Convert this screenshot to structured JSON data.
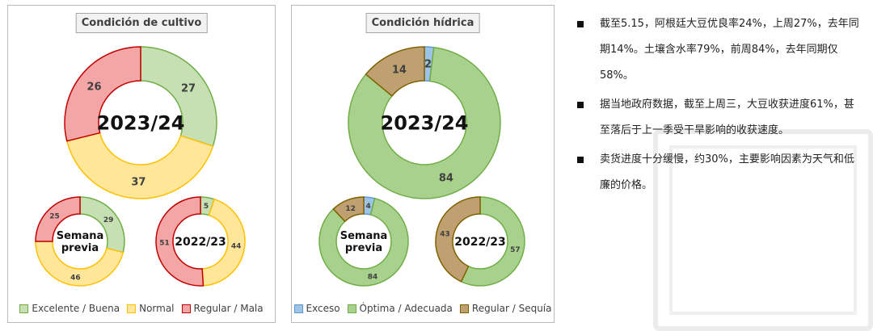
{
  "panels": [
    {
      "title": "Condición de cultivo",
      "legend": [
        {
          "label": "Excelente / Buena",
          "fill": "#c6e0b4",
          "stroke": "#70ad47"
        },
        {
          "label": "Normal",
          "fill": "#ffe699",
          "stroke": "#ffc000"
        },
        {
          "label": "Regular / Mala",
          "fill": "#f4a6a6",
          "stroke": "#c00000"
        }
      ]
    },
    {
      "title": "Condición hídrica",
      "legend": [
        {
          "label": "Exceso",
          "fill": "#9dc3e6",
          "stroke": "#5b9bd5"
        },
        {
          "label": "Óptima / Adecuada",
          "fill": "#a9d18e",
          "stroke": "#70ad47"
        },
        {
          "label": "Regular / Sequía",
          "fill": "#bfa171",
          "stroke": "#7f6000"
        }
      ]
    }
  ],
  "chart_data": [
    {
      "type": "pie",
      "title": "Condición de cultivo",
      "center_label": "2023/24",
      "categories": [
        "Excelente / Buena",
        "Normal",
        "Regular / Mala"
      ],
      "values": [
        27,
        37,
        26
      ]
    },
    {
      "type": "pie",
      "title": "Condición de cultivo",
      "center_label": "Semana previa",
      "categories": [
        "Excelente / Buena",
        "Normal",
        "Regular / Mala"
      ],
      "values": [
        29,
        46,
        25
      ]
    },
    {
      "type": "pie",
      "title": "Condición de cultivo",
      "center_label": "2022/23",
      "categories": [
        "Excelente / Buena",
        "Normal",
        "Regular / Mala"
      ],
      "values": [
        5,
        44,
        51
      ]
    },
    {
      "type": "pie",
      "title": "Condición hídrica",
      "center_label": "2023/24",
      "categories": [
        "Exceso",
        "Óptima / Adecuada",
        "Regular / Sequía"
      ],
      "values": [
        2,
        84,
        14
      ]
    },
    {
      "type": "pie",
      "title": "Condición hídrica",
      "center_label": "Semana previa",
      "categories": [
        "Exceso",
        "Óptima / Adecuada",
        "Regular / Sequía"
      ],
      "values": [
        4,
        84,
        12
      ]
    },
    {
      "type": "pie",
      "title": "Condición hídrica",
      "center_label": "2022/23",
      "categories": [
        "Exceso",
        "Óptima / Adecuada",
        "Regular / Sequía"
      ],
      "values": [
        0,
        57,
        43
      ]
    }
  ],
  "notes": [
    "截至5.15，阿根廷大豆优良率24%，上周27%，去年同期14%。土壤含水率79%，前周84%，去年同期仅58%。",
    "据当地政府数据，截至上周三，大豆收获进度61%，甚至落后于上一季受干旱影响的收获速度。",
    "卖货进度十分缓慢，约30%，主要影响因素为天气和低廉的价格。"
  ]
}
